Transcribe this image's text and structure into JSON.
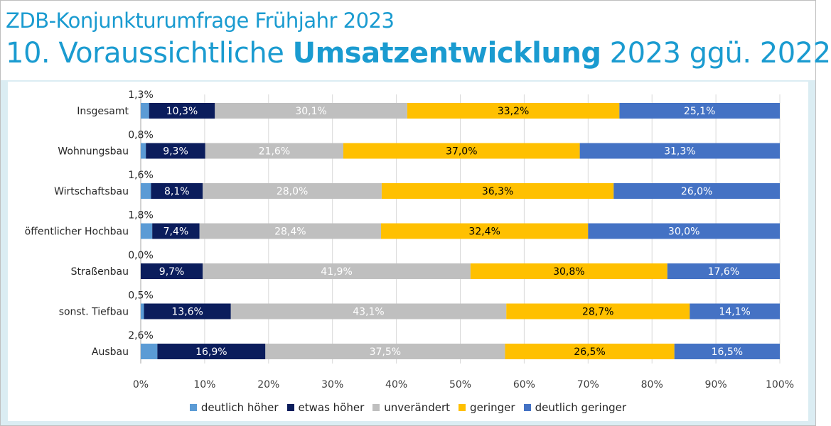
{
  "header": {
    "subtitle": "ZDB-Konjunkturumfrage Frühjahr 2023",
    "title_prefix": "10. Voraussichtliche ",
    "title_bold": "Umsatzentwicklung",
    "title_suffix": " 2023 ggü. 2022"
  },
  "colors": {
    "title": "#1a9bd0",
    "panel_background": "#dbedf3",
    "series": [
      "#5b9bd5",
      "#0b1d5c",
      "#bfbfbf",
      "#ffc000",
      "#4472c4"
    ]
  },
  "chart_data": {
    "type": "bar",
    "orientation": "horizontal",
    "stacked": "percent",
    "categories": [
      "Insgesamt",
      "Wohnungsbau",
      "Wirtschaftsbau",
      "öffentlicher Hochbau",
      "Straßenbau",
      "sonst. Tiefbau",
      "Ausbau"
    ],
    "series": [
      {
        "name": "deutlich höher",
        "values": [
          1.3,
          0.8,
          1.6,
          1.8,
          0.0,
          0.5,
          2.6
        ],
        "labels": [
          "1,3%",
          "0,8%",
          "1,6%",
          "1,8%",
          "0,0%",
          "0,5%",
          "2,6%"
        ]
      },
      {
        "name": "etwas höher",
        "values": [
          10.3,
          9.3,
          8.1,
          7.4,
          9.7,
          13.6,
          16.9
        ],
        "labels": [
          "10,3%",
          "9,3%",
          "8,1%",
          "7,4%",
          "9,7%",
          "13,6%",
          "16,9%"
        ]
      },
      {
        "name": "unverändert",
        "values": [
          30.1,
          21.6,
          28.0,
          28.4,
          41.9,
          43.1,
          37.5
        ],
        "labels": [
          "30,1%",
          "21,6%",
          "28,0%",
          "28,4%",
          "41,9%",
          "43,1%",
          "37,5%"
        ]
      },
      {
        "name": "geringer",
        "values": [
          33.2,
          37.0,
          36.3,
          32.4,
          30.8,
          28.7,
          26.5
        ],
        "labels": [
          "33,2%",
          "37,0%",
          "36,3%",
          "32,4%",
          "30,8%",
          "28,7%",
          "26,5%"
        ]
      },
      {
        "name": "deutlich geringer",
        "values": [
          25.1,
          31.3,
          26.0,
          30.0,
          17.6,
          14.1,
          16.5
        ],
        "labels": [
          "25,1%",
          "31,3%",
          "26,0%",
          "30,0%",
          "17,6%",
          "14,1%",
          "16,5%"
        ]
      }
    ],
    "xlim": [
      0,
      100
    ],
    "xticks": [
      "0%",
      "10%",
      "20%",
      "30%",
      "40%",
      "50%",
      "60%",
      "70%",
      "80%",
      "90%",
      "100%"
    ],
    "legend_position": "bottom",
    "grid": true
  }
}
